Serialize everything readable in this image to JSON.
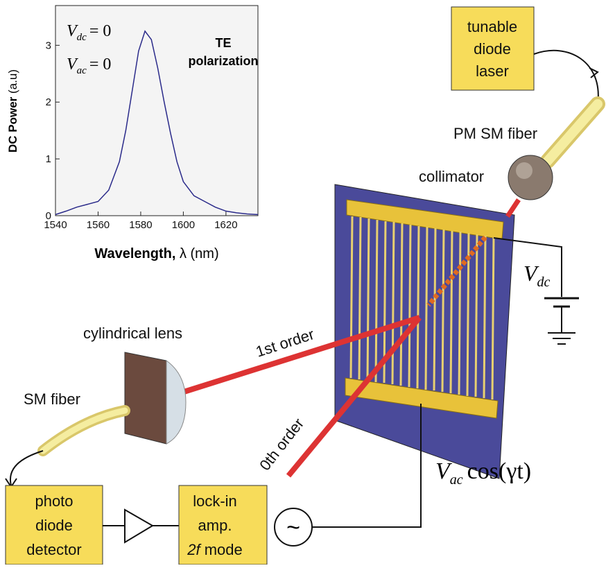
{
  "chart_data": {
    "type": "line",
    "y_label": "DC Power",
    "y_unit": "(a.u)",
    "x_label": "Wavelength,",
    "x_unit": "λ (nm)",
    "annotations": [
      {
        "main": "V",
        "sub": "dc",
        "rest": "= 0"
      },
      {
        "main": "V",
        "sub": "ac",
        "rest": "= 0"
      }
    ],
    "note": [
      "TE",
      "polarization"
    ],
    "x": [
      1540,
      1545,
      1550,
      1555,
      1560,
      1565,
      1570,
      1573,
      1576,
      1579,
      1582,
      1585,
      1588,
      1591,
      1594,
      1597,
      1600,
      1605,
      1610,
      1615,
      1620,
      1625,
      1630,
      1635
    ],
    "values": [
      0.02,
      0.08,
      0.15,
      0.2,
      0.25,
      0.45,
      0.95,
      1.5,
      2.2,
      2.9,
      3.25,
      3.1,
      2.6,
      2.0,
      1.45,
      0.95,
      0.6,
      0.35,
      0.25,
      0.15,
      0.08,
      0.05,
      0.03,
      0.02
    ],
    "color": "#2a2a8a",
    "xlim": [
      1540,
      1635
    ],
    "xticks": [
      1540,
      1560,
      1580,
      1600,
      1620
    ],
    "ylim": [
      0,
      3.7
    ],
    "yticks": [
      0,
      1,
      2,
      3
    ]
  },
  "diagram": {
    "laser": [
      "tunable",
      "diode",
      "laser"
    ],
    "pm_fiber": "PM SM fiber",
    "collimator": "collimator",
    "vdc": {
      "main": "V",
      "sub": "dc"
    },
    "lens": "cylindrical lens",
    "first_order": "1st order",
    "zeroth_order": "0th order",
    "sm_fiber": "SM fiber",
    "detector": [
      "photo",
      "diode",
      "detector"
    ],
    "lockin": [
      "lock-in",
      "amp."
    ],
    "lockin_mode": {
      "italic": "2f",
      "rest": " mode"
    },
    "source": "~",
    "vac": {
      "main": "V",
      "sub": "ac",
      "rest": "cos(γt)"
    }
  }
}
